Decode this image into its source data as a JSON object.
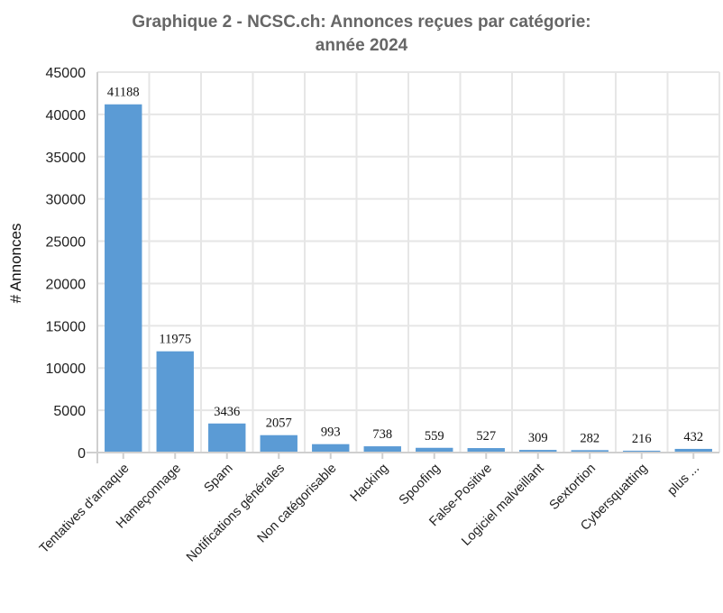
{
  "chart_data": {
    "type": "bar",
    "title": [
      "Graphique 2 - NCSC.ch: Annonces reçues par catégorie:",
      "année 2024"
    ],
    "ylabel": "# Annonces",
    "xlabel": "",
    "ylim": [
      0,
      45000
    ],
    "yticks": [
      0,
      5000,
      10000,
      15000,
      20000,
      25000,
      30000,
      35000,
      40000,
      45000
    ],
    "grid": true,
    "bar_color": "#5b9bd5",
    "categories": [
      "Tentatives d'arnaque",
      "Hameçonnage",
      "Spam",
      "Notifications générales",
      "Non catégorisable",
      "Hacking",
      "Spoofing",
      "False-Positive",
      "Logiciel malveillant",
      "Sextortion",
      "Cybersquatting",
      "plus ..."
    ],
    "values": [
      41188,
      11975,
      3436,
      2057,
      993,
      738,
      559,
      527,
      309,
      282,
      216,
      432
    ]
  }
}
